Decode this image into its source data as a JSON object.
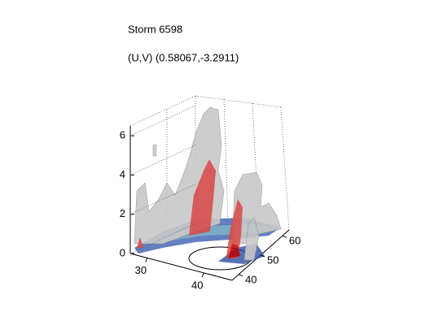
{
  "chart_data": {
    "type": "surface3d",
    "title": "Storm 6598",
    "subtitle": "(U,V) (0.58067,-3.2911)",
    "xlim": [
      27,
      45
    ],
    "xticks": [
      30,
      40
    ],
    "ylim": [
      37,
      63
    ],
    "yticks": [
      40,
      50,
      60
    ],
    "zlim": [
      0,
      6.5
    ],
    "zticks": [
      0,
      2,
      4,
      6
    ],
    "grid": true
  }
}
